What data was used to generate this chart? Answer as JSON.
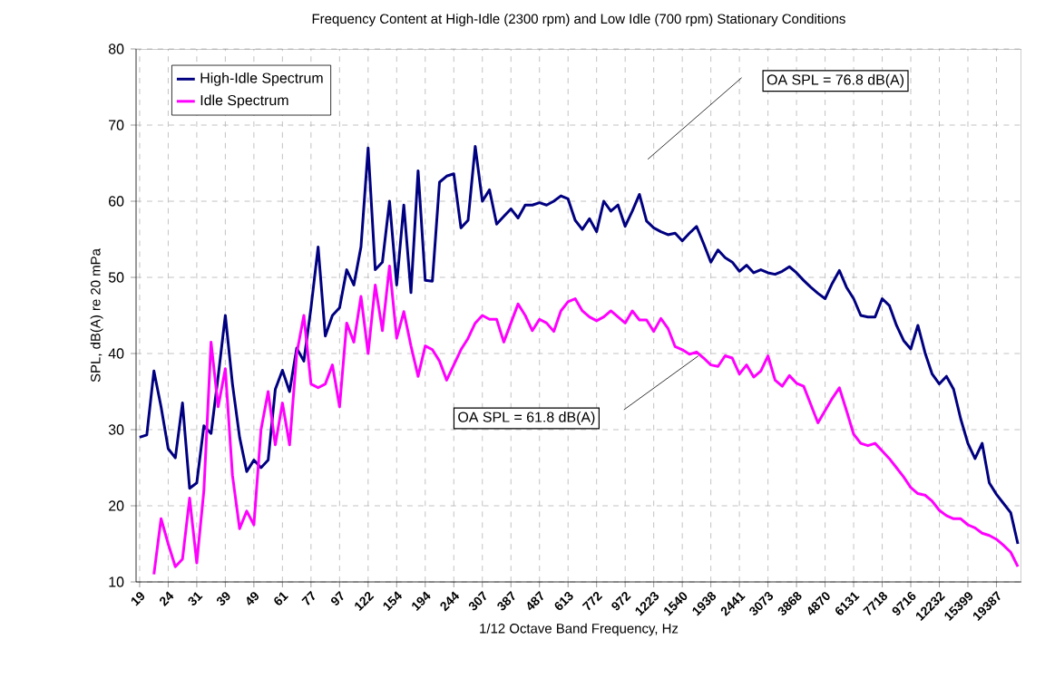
{
  "chart_data": {
    "type": "line",
    "title": "Frequency Content at High-Idle (2300 rpm) and Low Idle (700 rpm) Stationary Conditions",
    "xlabel": "1/12 Octave Band Frequency, Hz",
    "ylabel": "SPL, dB(A) re 20 mPa",
    "categories": [
      "19",
      null,
      null,
      null,
      "24",
      null,
      null,
      null,
      "31",
      null,
      null,
      null,
      "39",
      null,
      null,
      null,
      "49",
      null,
      null,
      null,
      "61",
      null,
      null,
      null,
      "77",
      null,
      null,
      null,
      "97",
      null,
      null,
      null,
      "122",
      null,
      null,
      null,
      "154",
      null,
      null,
      null,
      "194",
      null,
      null,
      null,
      "244",
      null,
      null,
      null,
      "307",
      null,
      null,
      null,
      "387",
      null,
      null,
      null,
      "487",
      null,
      null,
      null,
      "613",
      null,
      null,
      null,
      "772",
      null,
      null,
      null,
      "972",
      null,
      null,
      null,
      "1223",
      null,
      null,
      null,
      "1540",
      null,
      null,
      null,
      "1938",
      null,
      null,
      null,
      "2441",
      null,
      null,
      null,
      "3073",
      null,
      null,
      null,
      "3868",
      null,
      null,
      null,
      "4870",
      null,
      null,
      null,
      "6131",
      null,
      null,
      null,
      "7718",
      null,
      null,
      null,
      "9716",
      null,
      null,
      null,
      "12232",
      null,
      null,
      null,
      "15399",
      null,
      null,
      null,
      "19387",
      null,
      null,
      null
    ],
    "series": [
      {
        "name": "High-Idle Spectrum",
        "color": "#000080",
        "values": [
          29,
          29.3,
          37.7,
          33,
          27.5,
          26.3,
          33.5,
          22.3,
          23,
          30.5,
          29.5,
          37,
          45,
          36,
          29,
          24.5,
          26,
          25,
          26,
          35.3,
          37.8,
          35,
          40.7,
          39,
          46,
          54,
          42.3,
          45,
          46,
          51,
          49,
          54,
          67,
          51,
          52,
          60,
          49,
          59.5,
          48,
          64,
          49.6,
          49.5,
          62.5,
          63.3,
          63.6,
          56.5,
          57.5,
          67.2,
          60,
          61.5,
          57,
          58,
          59,
          57.8,
          59.5,
          59.5,
          59.8,
          59.5,
          60,
          60.7,
          60.3,
          57.5,
          56.3,
          57.7,
          56,
          60,
          58.7,
          59.5,
          56.7,
          58.7,
          60.9,
          57.4,
          56.5,
          56,
          55.6,
          55.8,
          54.8,
          55.8,
          56.7,
          54.4,
          52,
          53.6,
          52.6,
          52,
          50.8,
          51.6,
          50.6,
          51,
          50.6,
          50.4,
          50.8,
          51.4,
          50.6,
          49.6,
          48.7,
          47.9,
          47.2,
          49.2,
          50.9,
          48.7,
          47.2,
          45,
          44.8,
          44.8,
          47.2,
          46.3,
          43.7,
          41.7,
          40.6,
          43.7,
          40.1,
          37.3,
          36,
          37,
          35.3,
          31.4,
          28.2,
          26.2,
          28.2,
          23,
          21.5,
          20.3,
          19.1,
          15
        ]
      },
      {
        "name": "Idle Spectrum",
        "color": "#ff00ff",
        "values": [
          null,
          null,
          11,
          18.3,
          15,
          12,
          13,
          21,
          12.5,
          22,
          41.5,
          33,
          38,
          24,
          17,
          19.3,
          17.5,
          30,
          35,
          28,
          33.5,
          28,
          40,
          45,
          36,
          35.5,
          36,
          38.5,
          33,
          44,
          41.5,
          47.5,
          40,
          49,
          43,
          51.5,
          42,
          45.5,
          41,
          37,
          41,
          40.5,
          39,
          36.5,
          38.5,
          40.5,
          42,
          44,
          45,
          44.5,
          44.5,
          41.5,
          44,
          46.5,
          45,
          43,
          44.5,
          44,
          42.9,
          45.6,
          46.8,
          47.2,
          45.6,
          44.8,
          44.3,
          44.8,
          45.6,
          44.8,
          44,
          45.6,
          44.4,
          44.4,
          42.9,
          44.6,
          43.3,
          40.9,
          40.5,
          39.9,
          40.2,
          39.4,
          38.5,
          38.3,
          39.7,
          39.4,
          37.3,
          38.5,
          36.9,
          37.7,
          39.7,
          36.5,
          35.7,
          37.1,
          36.1,
          35.7,
          33.3,
          30.9,
          32.5,
          34.1,
          35.5,
          32.5,
          29.4,
          28.2,
          27.9,
          28.2,
          27.2,
          26.2,
          25,
          23.8,
          22.4,
          21.6,
          21.4,
          20.6,
          19.4,
          18.7,
          18.3,
          18.3,
          17.5,
          17.1,
          16.4,
          16.1,
          15.6,
          14.8,
          13.9,
          12
        ]
      }
    ],
    "ylim": [
      10,
      80
    ],
    "yticks": [
      10,
      20,
      30,
      40,
      50,
      60,
      70,
      80
    ],
    "grid": true,
    "legend": "top left",
    "marker": "none",
    "line_style": "solid",
    "annotations": [
      "OA SPL = 76.8 dB(A)",
      "OA SPL = 61.8 dB(A)"
    ]
  }
}
